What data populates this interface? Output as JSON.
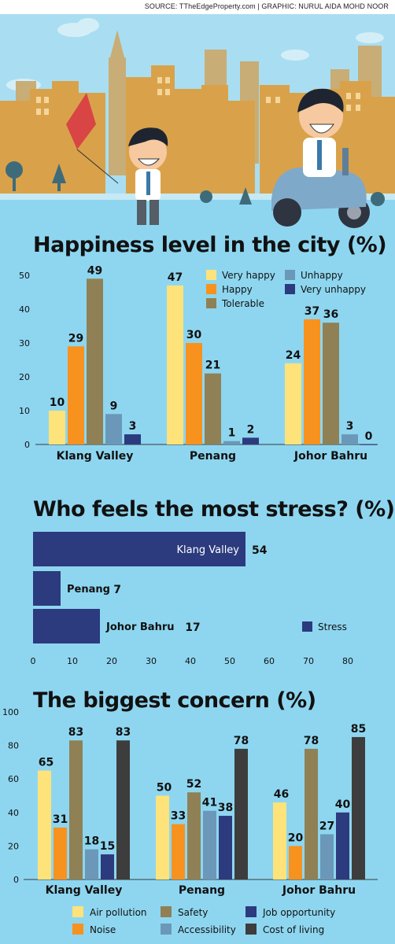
{
  "header": {
    "source_text": "SOURCE: TTheEdgeProperty.com  |  GRAPHIC: NURUL AIDA MOHD NOOR"
  },
  "colors": {
    "background": "#8ed6f0",
    "very_happy": "#fde37a",
    "happy": "#f7921e",
    "tolerable": "#8f8155",
    "unhappy": "#6b98b8",
    "very_unhappy": "#2c3a7e",
    "stress": "#2c3a7e",
    "air_pollution": "#fde37a",
    "noise": "#f7921e",
    "safety": "#8f8155",
    "accessibility": "#6b98b8",
    "job_opportunity": "#2c3a7e",
    "cost_of_living": "#3d3d3d"
  },
  "chart_data": [
    {
      "type": "bar",
      "title": "Happiness level in the city (%)",
      "categories": [
        "Klang Valley",
        "Penang",
        "Johor Bahru"
      ],
      "ylim": [
        0,
        50
      ],
      "yticks": [
        "0",
        "10",
        "20",
        "30",
        "40",
        "50"
      ],
      "series": [
        {
          "name": "Very happy",
          "values": [
            10,
            47,
            24
          ]
        },
        {
          "name": "Happy",
          "values": [
            29,
            30,
            37
          ]
        },
        {
          "name": "Tolerable",
          "values": [
            49,
            21,
            36
          ]
        },
        {
          "name": "Unhappy",
          "values": [
            9,
            1,
            3
          ]
        },
        {
          "name": "Very unhappy",
          "values": [
            3,
            2,
            0
          ]
        }
      ],
      "legend_position": "top-right"
    },
    {
      "type": "bar",
      "orientation": "horizontal",
      "title": "Who feels the most stress? (%)",
      "categories": [
        "Klang Valley",
        "Penang",
        "Johor Bahru"
      ],
      "xlim": [
        0,
        80
      ],
      "xticks": [
        "0",
        "10",
        "20",
        "30",
        "40",
        "50",
        "60",
        "70",
        "80"
      ],
      "series": [
        {
          "name": "Stress",
          "values": [
            54,
            7,
            17
          ]
        }
      ],
      "legend_position": "right"
    },
    {
      "type": "bar",
      "title": "The biggest concern (%)",
      "categories": [
        "Klang Valley",
        "Penang",
        "Johor Bahru"
      ],
      "ylim": [
        0,
        100
      ],
      "yticks": [
        "0",
        "20",
        "40",
        "60",
        "80",
        "100"
      ],
      "series": [
        {
          "name": "Air pollution",
          "values": [
            65,
            50,
            46
          ]
        },
        {
          "name": "Noise",
          "values": [
            31,
            33,
            20
          ]
        },
        {
          "name": "Safety",
          "values": [
            83,
            52,
            78
          ]
        },
        {
          "name": "Accessibility",
          "values": [
            18,
            41,
            27
          ]
        },
        {
          "name": "Job opportunity",
          "values": [
            15,
            38,
            40
          ]
        },
        {
          "name": "Cost of living",
          "values": [
            83,
            78,
            85
          ]
        }
      ],
      "legend_position": "bottom"
    }
  ]
}
